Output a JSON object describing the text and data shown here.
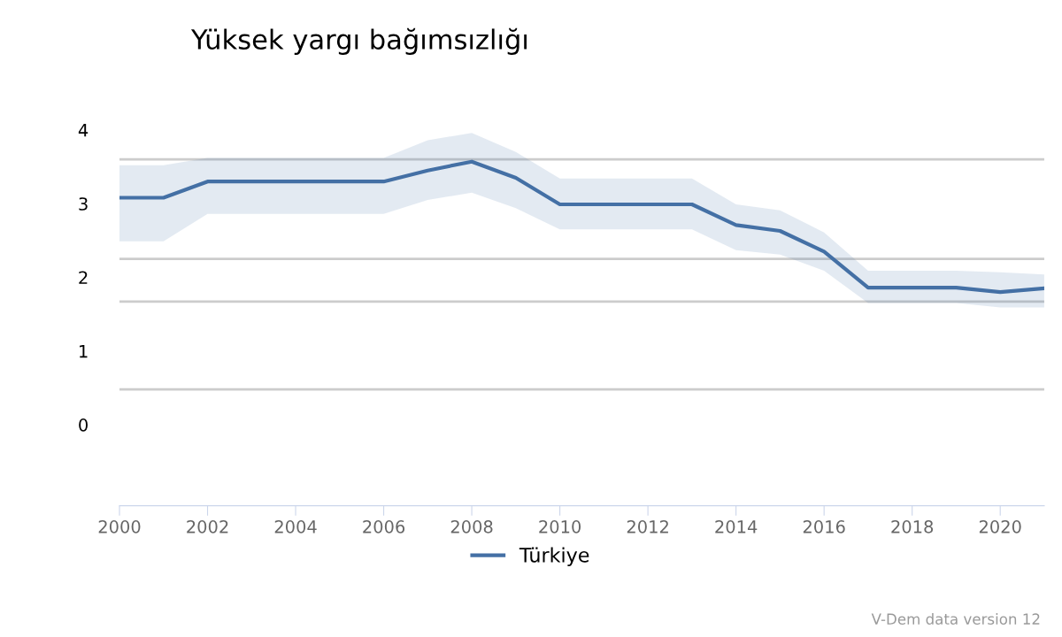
{
  "chart_data": {
    "type": "line",
    "title": "Yüksek yargı bağımsızlığı",
    "x": [
      2000,
      2001,
      2002,
      2003,
      2004,
      2005,
      2006,
      2007,
      2008,
      2009,
      2010,
      2011,
      2012,
      2013,
      2014,
      2015,
      2016,
      2017,
      2018,
      2019,
      2020,
      2021
    ],
    "series": [
      {
        "name": "Türkiye",
        "color": "#4470a5",
        "values": [
          3.08,
          3.08,
          3.3,
          3.3,
          3.3,
          3.3,
          3.3,
          3.45,
          3.57,
          3.35,
          2.99,
          2.99,
          2.99,
          2.99,
          2.71,
          2.63,
          2.35,
          1.86,
          1.86,
          1.86,
          1.8,
          1.85
        ],
        "upper": [
          3.52,
          3.52,
          3.62,
          3.62,
          3.62,
          3.62,
          3.62,
          3.86,
          3.96,
          3.7,
          3.34,
          3.34,
          3.34,
          3.34,
          2.99,
          2.91,
          2.61,
          2.09,
          2.09,
          2.09,
          2.07,
          2.04
        ],
        "lower": [
          2.49,
          2.49,
          2.86,
          2.86,
          2.86,
          2.86,
          2.86,
          3.05,
          3.15,
          2.94,
          2.65,
          2.65,
          2.65,
          2.65,
          2.37,
          2.31,
          2.09,
          1.65,
          1.65,
          1.65,
          1.59,
          1.59
        ]
      }
    ],
    "xlim": [
      2000,
      2021
    ],
    "xticks": [
      2000,
      2002,
      2004,
      2006,
      2008,
      2010,
      2012,
      2014,
      2016,
      2018,
      2020
    ],
    "ylim": [
      -1.1,
      4
    ],
    "yticks": [
      0,
      1,
      2,
      3,
      4
    ],
    "ref_lines": [
      {
        "axis": "y",
        "value": 3.6,
        "color": "#cccccc"
      },
      {
        "axis": "y",
        "value": 2.25,
        "color": "#cccccc"
      },
      {
        "axis": "y",
        "value": 1.67,
        "color": "#cccccc"
      },
      {
        "axis": "y",
        "value": 0.48,
        "color": "#cccccc"
      }
    ],
    "grid": false,
    "legend": "bottom",
    "marker": "none",
    "line_style": "solid",
    "annotations": [
      "V-Dem data version 12"
    ]
  }
}
